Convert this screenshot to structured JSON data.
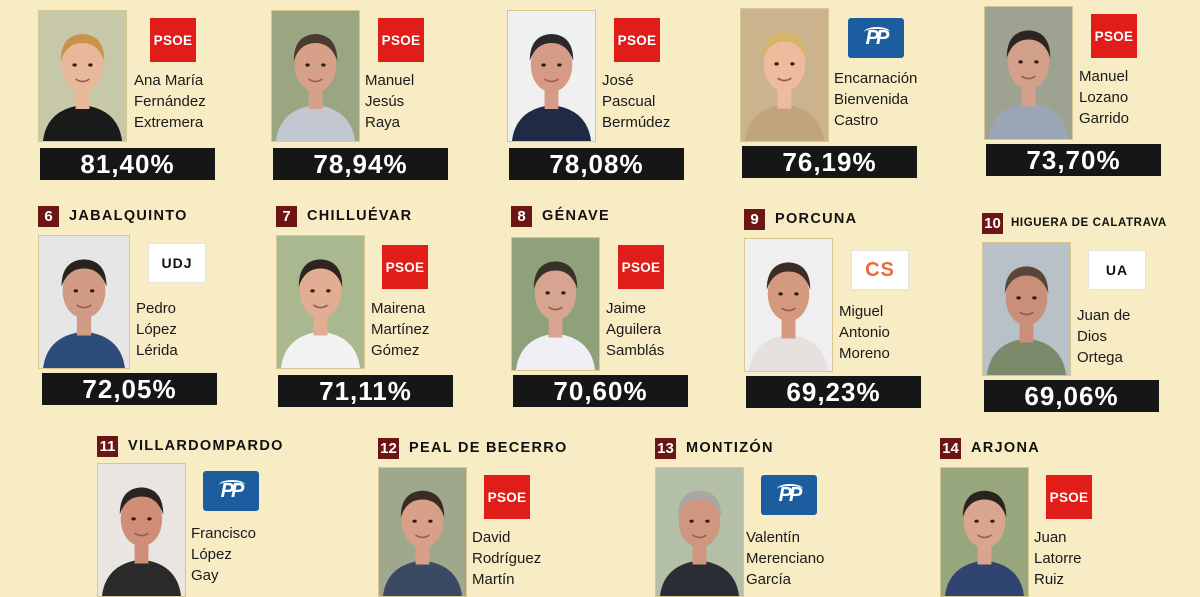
{
  "cards": [
    {
      "rank": "",
      "town": "",
      "party": "psoe",
      "party_label": "PSOE",
      "name": [
        "Ana María",
        "Fernández",
        "Extremera"
      ],
      "pct": "81,40%",
      "bg": "#c7c8a9",
      "hair": "#c8934b",
      "skin": "#e9b79a",
      "shirt": "#1a1a1a"
    },
    {
      "rank": "",
      "town": "",
      "party": "psoe",
      "party_label": "PSOE",
      "name": [
        "Manuel",
        "Jesús",
        "Raya"
      ],
      "pct": "78,94%",
      "bg": "#9aa582",
      "hair": "#4a3a30",
      "skin": "#d7a088",
      "shirt": "#c2c7d2"
    },
    {
      "rank": "",
      "town": "",
      "party": "psoe",
      "party_label": "PSOE",
      "name": [
        "José",
        "Pascual",
        "Bermúdez"
      ],
      "pct": "78,08%",
      "bg": "#f0f0f0",
      "hair": "#2a2a2a",
      "skin": "#d59b84",
      "shirt": "#1f2a44"
    },
    {
      "rank": "",
      "town": "",
      "party": "pp",
      "party_label": "PP",
      "name": [
        "Encarnación",
        "Bienvenida",
        "Castro"
      ],
      "pct": "76,19%",
      "bg": "#cbb38d",
      "hair": "#d7b36c",
      "skin": "#ecbc9d",
      "shirt": "#bfa47e"
    },
    {
      "rank": "",
      "town": "",
      "party": "psoe",
      "party_label": "PSOE",
      "name": [
        "Manuel",
        "Lozano",
        "Garrido"
      ],
      "pct": "73,70%",
      "bg": "#9da390",
      "hair": "#2b2622",
      "skin": "#d3a08a",
      "shirt": "#9aa6b4"
    },
    {
      "rank": "6",
      "town": "JABALQUINTO",
      "party": "white",
      "party_label": "UDJ",
      "name": [
        "Pedro",
        "López",
        "Lérida"
      ],
      "pct": "72,05%",
      "bg": "#e6e6e6",
      "hair": "#2a2220",
      "skin": "#d19b86",
      "shirt": "#2e4c7a"
    },
    {
      "rank": "7",
      "town": "CHILLUÉVAR",
      "party": "psoe",
      "party_label": "PSOE",
      "name": [
        "Mairena",
        "Martínez",
        "Gómez"
      ],
      "pct": "71,11%",
      "bg": "#aab88f",
      "hair": "#2f2420",
      "skin": "#e2ad93",
      "shirt": "#f2f2f2"
    },
    {
      "rank": "8",
      "town": "GÉNAVE",
      "party": "psoe",
      "party_label": "PSOE",
      "name": [
        "Jaime",
        "Aguilera",
        "Samblás"
      ],
      "pct": "70,60%",
      "bg": "#8fa17a",
      "hair": "#3a302a",
      "skin": "#d7a58f",
      "shirt": "#eef0f5"
    },
    {
      "rank": "9",
      "town": "PORCUNA",
      "party": "cs",
      "party_label": "CS",
      "name": [
        "Miguel",
        "Antonio",
        "Moreno"
      ],
      "pct": "69,23%",
      "bg": "#efefef",
      "hair": "#3b2d26",
      "skin": "#d4997f",
      "shirt": "#e6e0de"
    },
    {
      "rank": "10",
      "town": "HIGUERA DE CALATRAVA",
      "party": "white",
      "party_label": "UA",
      "name": [
        "Juan de",
        "Dios",
        "Ortega"
      ],
      "pct": "69,06%",
      "bg": "#b8c0c8",
      "hair": "#5a4638",
      "skin": "#c98f79",
      "shirt": "#7a8a6a"
    },
    {
      "rank": "11",
      "town": "VILLARDOMPARDO",
      "party": "pp",
      "party_label": "PP",
      "name": [
        "Francisco",
        "López",
        "Gay"
      ],
      "pct": "",
      "bg": "#e9e6e2",
      "hair": "#2a2422",
      "skin": "#d08e79",
      "shirt": "#2a2a2a"
    },
    {
      "rank": "12",
      "town": "PEAL DE BECERRO",
      "party": "psoe",
      "party_label": "PSOE",
      "name": [
        "David",
        "Rodríguez",
        "Martín"
      ],
      "pct": "",
      "bg": "#9fa88c",
      "hair": "#3a2c22",
      "skin": "#d9a089",
      "shirt": "#3a4a62"
    },
    {
      "rank": "13",
      "town": "MONTIZÓN",
      "party": "pp",
      "party_label": "PP",
      "name": [
        "Valentín",
        "Merenciano",
        "García"
      ],
      "pct": "",
      "bg": "#b3bfa6",
      "hair": "#a9a6a3",
      "skin": "#cf977f",
      "shirt": "#2a2d36"
    },
    {
      "rank": "14",
      "town": "ARJONA",
      "party": "psoe",
      "party_label": "PSOE",
      "name": [
        "Juan",
        "Latorre",
        "Ruiz"
      ],
      "pct": "",
      "bg": "#98a67e",
      "hair": "#2a2420",
      "skin": "#d9a58e",
      "shirt": "#2f4470"
    }
  ]
}
